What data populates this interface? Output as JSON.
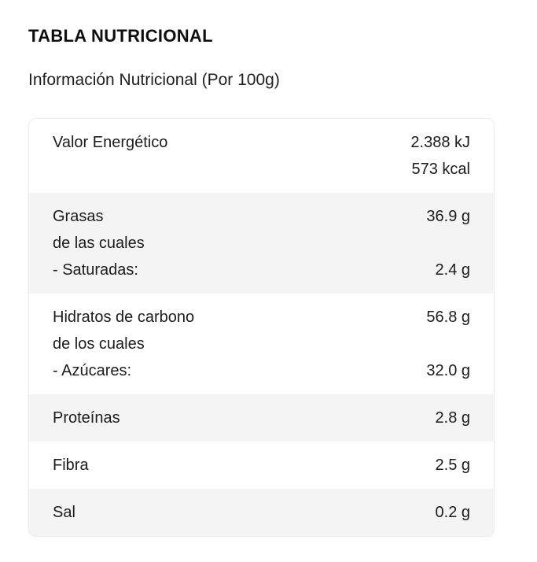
{
  "section": {
    "title": "TABLA NUTRICIONAL",
    "subtitle": "Información Nutricional (Por 100g)"
  },
  "table": {
    "rows": [
      {
        "lines": [
          {
            "left": "Valor Energético",
            "right": "2.388 kJ"
          },
          {
            "left": "",
            "right": "573 kcal"
          }
        ]
      },
      {
        "lines": [
          {
            "left": "Grasas",
            "right": "36.9 g"
          },
          {
            "left": "de las cuales",
            "right": ""
          },
          {
            "left": "- Saturadas:",
            "right": "2.4 g"
          }
        ]
      },
      {
        "lines": [
          {
            "left": "Hidratos de carbono",
            "right": "56.8 g"
          },
          {
            "left": "de los cuales",
            "right": ""
          },
          {
            "left": "- Azúcares:",
            "right": "32.0 g"
          }
        ]
      },
      {
        "lines": [
          {
            "left": "Proteínas",
            "right": "2.8 g"
          }
        ]
      },
      {
        "lines": [
          {
            "left": "Fibra",
            "right": "2.5 g"
          }
        ]
      },
      {
        "lines": [
          {
            "left": "Sal",
            "right": "0.2 g"
          }
        ]
      }
    ],
    "colors": {
      "text": "#1c1c1c",
      "row_bg": "#ffffff",
      "row_alt_bg": "#f4f4f5",
      "table_border": "#ededed"
    }
  }
}
